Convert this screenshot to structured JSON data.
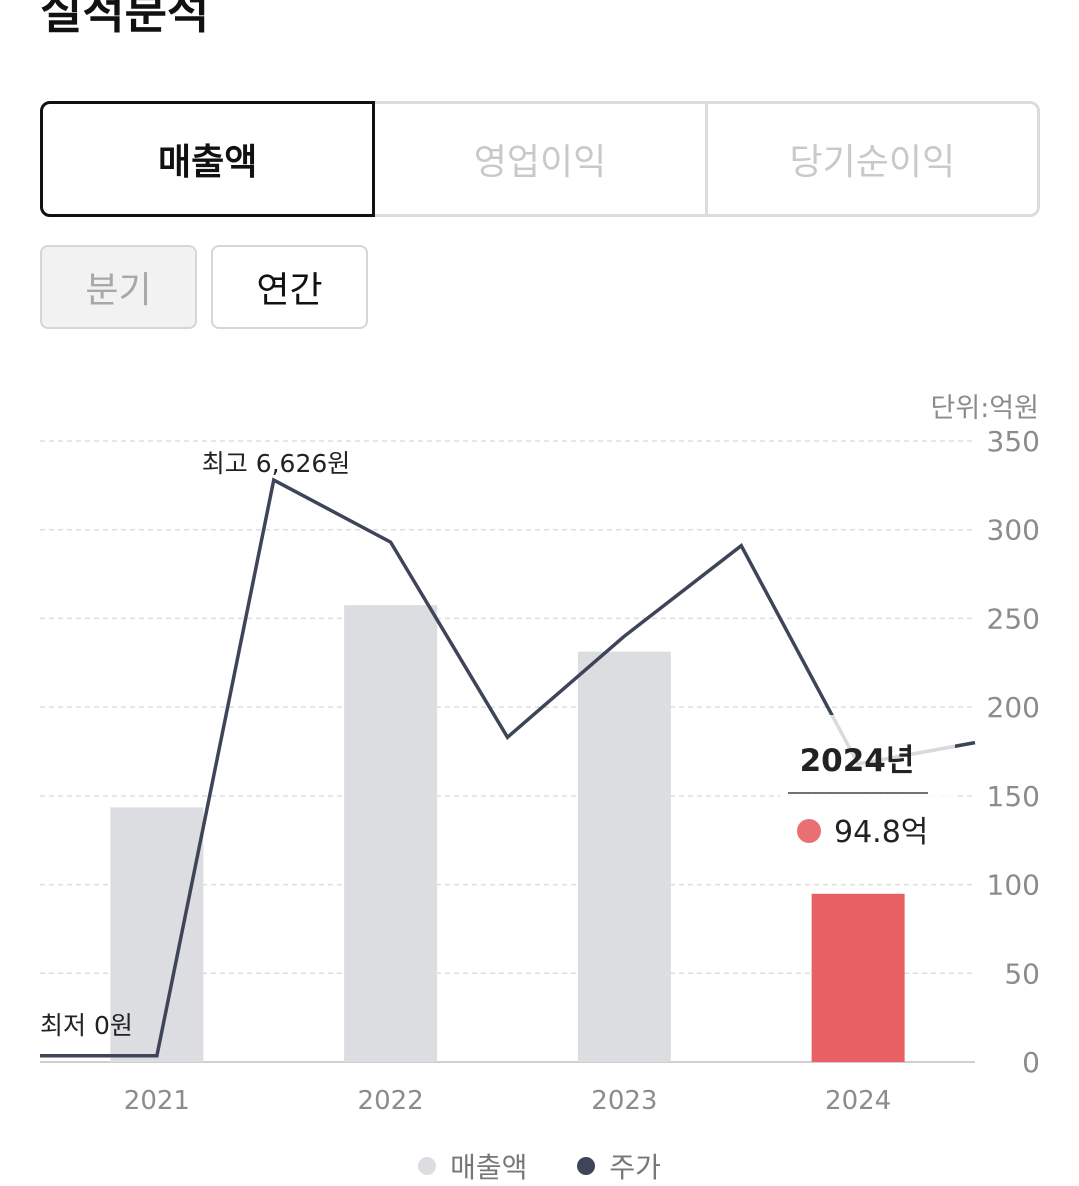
{
  "page": {
    "title": "실적분석"
  },
  "metric_tabs": [
    {
      "label": "매출액",
      "active": true
    },
    {
      "label": "영업이익",
      "active": false
    },
    {
      "label": "당기순이익",
      "active": false
    }
  ],
  "period_tabs": [
    {
      "label": "분기",
      "active": false
    },
    {
      "label": "연간",
      "active": true
    }
  ],
  "unit_label": "단위:억원",
  "legend": [
    {
      "label": "매출액",
      "color": "#dcdde1"
    },
    {
      "label": "주가",
      "color": "#3f4559"
    }
  ],
  "tooltip": {
    "title": "2024년",
    "value": "94.8억",
    "color": "#e86f72"
  },
  "chart_data": {
    "type": "bar",
    "categories": [
      "2021",
      "2022",
      "2023",
      "2024"
    ],
    "series": [
      {
        "name": "매출액",
        "values": [
          143.5,
          257.5,
          231.3,
          94.8
        ],
        "color": "#dcdde1",
        "highlight_color": "#e86064",
        "highlight_index": 3
      },
      {
        "name": "주가",
        "type": "line",
        "color": "#3f4559",
        "x": [
          -0.5,
          0,
          0.5,
          1,
          1.5,
          2,
          2.5,
          3,
          3.5
        ],
        "values": [
          3.5,
          3.5,
          328,
          293,
          183,
          240,
          291,
          168,
          180
        ]
      }
    ],
    "ylim": [
      0,
      350
    ],
    "yticks": [
      0,
      50,
      100,
      150,
      200,
      250,
      300,
      350
    ],
    "grid": true,
    "annotations": {
      "high": "최고 6,626원",
      "low": "최저 0원"
    }
  }
}
